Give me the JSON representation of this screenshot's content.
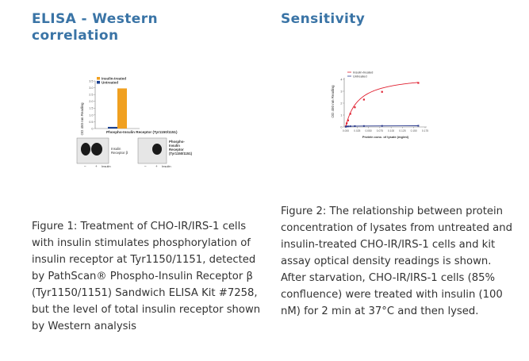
{
  "left": {
    "heading": "ELISA - Western correlation",
    "chart_data": {
      "type": "bar",
      "ylabel": "OD 450 nm Reading",
      "xlabel": "Phospho-Insulin Receptor (Tyr1150/1151)",
      "ylim": [
        0,
        3.5
      ],
      "yticks": [
        "0",
        "0.5",
        "1.0",
        "1.5",
        "2.0",
        "2.5",
        "3.0",
        "3.5"
      ],
      "series": [
        {
          "name": "Insulin-treated",
          "color": "#f0a020",
          "values": [
            2.95
          ]
        },
        {
          "name": "Untreated",
          "color": "#1a3f8f",
          "values": [
            0.12
          ]
        }
      ]
    },
    "blot": {
      "label_insulin_receptor": [
        "Insulin",
        "Receptor β"
      ],
      "label_phospho": [
        "Phospho-",
        "Insulin",
        "Receptor",
        "(Tyr1150/1151)"
      ],
      "lane_minus": "–",
      "lane_plus": "+",
      "lane_label": "Insulin"
    },
    "caption": "Figure 1: Treatment of CHO-IR/IRS-1 cells with insulin stimulates phosphorylation of insulin receptor at Tyr1150/1151, detected by PathScan® Phospho-Insulin Receptor β (Tyr1150/1151) Sandwich ELISA Kit #7258, but the level of total insulin receptor shown by Western analysis"
  },
  "right": {
    "heading": "Sensitivity",
    "chart_data": {
      "type": "line",
      "xlabel": "Protein conc. of lysate (mg/ml)",
      "ylabel": "OD 450 nm Reading",
      "xlim": [
        0,
        0.175
      ],
      "ylim": [
        0,
        4
      ],
      "xticks": [
        "0.000",
        "0.025",
        "0.050",
        "0.075",
        "0.100",
        "0.125",
        "0.150",
        "0.175"
      ],
      "yticks": [
        "0",
        "1",
        "2",
        "3",
        "4"
      ],
      "series": [
        {
          "name": "Insulin-treated",
          "color": "#e02030",
          "x": [
            0.0,
            0.002,
            0.005,
            0.01,
            0.02,
            0.04,
            0.08,
            0.16
          ],
          "y": [
            0.05,
            0.3,
            0.55,
            1.1,
            1.65,
            2.3,
            2.95,
            3.7
          ]
        },
        {
          "name": "Untreated",
          "color": "#2a3a8f",
          "x": [
            0.0,
            0.002,
            0.005,
            0.01,
            0.02,
            0.04,
            0.08,
            0.16
          ],
          "y": [
            0.02,
            0.04,
            0.05,
            0.06,
            0.07,
            0.08,
            0.09,
            0.1
          ]
        }
      ]
    },
    "caption": "Figure 2: The relationship between protein concentration of lysates from untreated and insulin-treated CHO-IR/IRS-1 cells and kit assay optical density readings is shown. After starvation, CHO-IR/IRS-1 cells (85% confluence) were treated with insulin (100 nM) for 2 min at 37°C and then lysed."
  }
}
